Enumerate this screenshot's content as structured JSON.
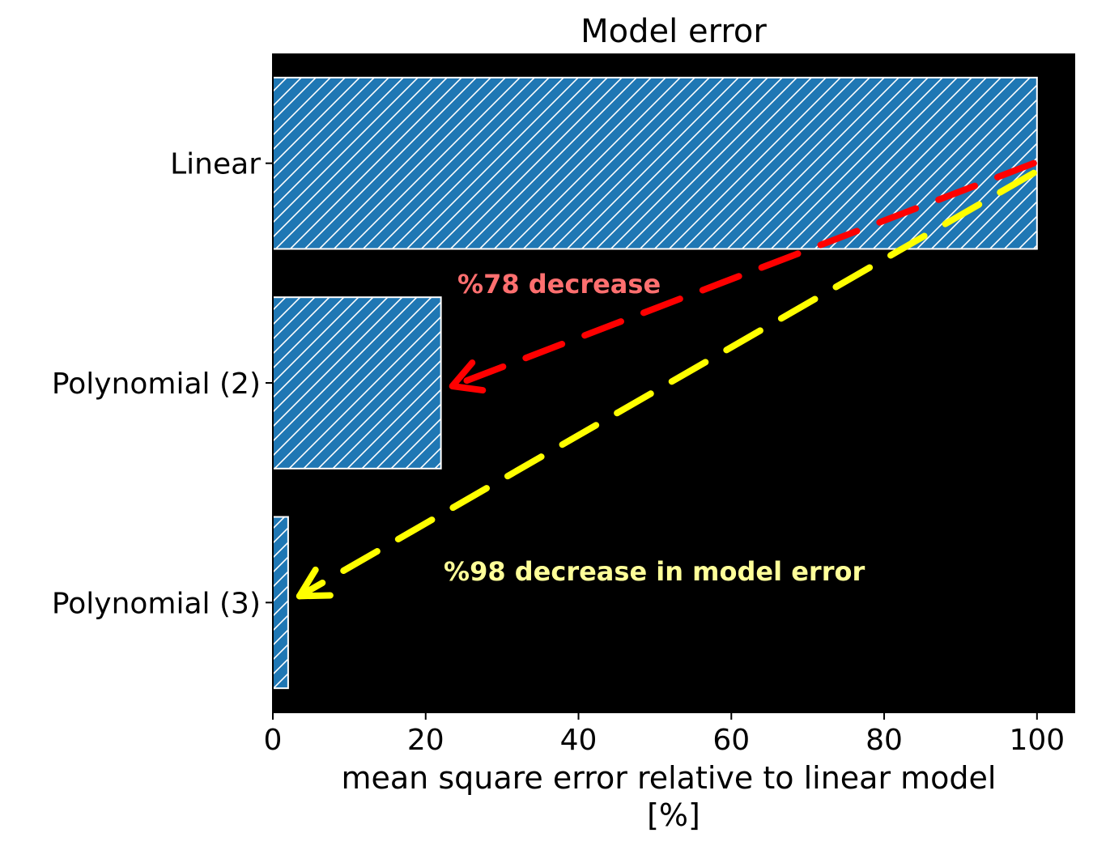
{
  "chart_data": {
    "type": "bar",
    "orientation": "horizontal",
    "title": "Model error",
    "xlabel_lines": [
      "mean square error relative to linear model",
      "[%]"
    ],
    "ylabel": "",
    "categories": [
      "Linear",
      "Polynomial (2)",
      "Polynomial (3)"
    ],
    "values": [
      100,
      22,
      2
    ],
    "xlim": [
      0,
      105
    ],
    "xticks": [
      0,
      20,
      40,
      60,
      80,
      100
    ],
    "grid": false,
    "plot_background": "#000000",
    "bar_color": "#1f77b4",
    "bar_hatch": "diagonal white lines",
    "annotations": [
      {
        "text": "%78 decrease",
        "color": "#ff6f6f",
        "arrow_color": "#ff0000",
        "from": {
          "x": 100,
          "category": "Linear"
        },
        "to": {
          "x": 22,
          "category": "Polynomial (2)"
        }
      },
      {
        "text": "%98 decrease in model error",
        "color": "#ffff99",
        "arrow_color": "#ffff00",
        "from": {
          "x": 100,
          "category": "Linear"
        },
        "to": {
          "x": 2,
          "category": "Polynomial (3)"
        }
      }
    ]
  }
}
